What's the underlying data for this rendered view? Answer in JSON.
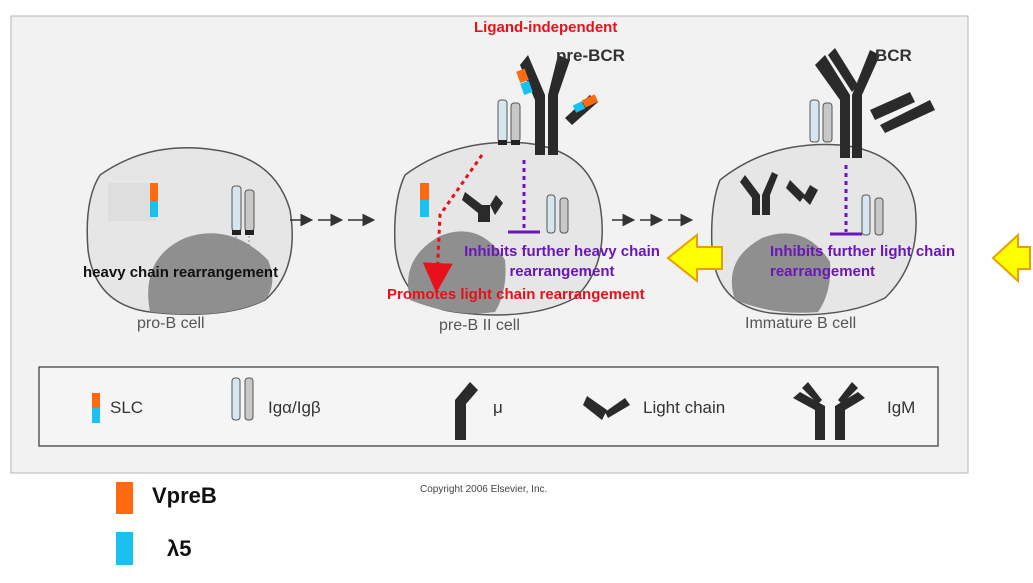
{
  "colors": {
    "vpreb": "#ff6a10",
    "lambda5": "#19c0f0",
    "inhibit": "#6a16b8",
    "promote": "#e8101a",
    "arrow_fill": "#ffff00",
    "arrow_stroke": "#e8a000",
    "cell_fill": "#e6e6e6",
    "nucleus_fill": "#8f8f8f",
    "receptor": "#2a2a2a"
  },
  "labels": {
    "ligand_independent": "Ligand-independent",
    "pre_bcr": "pre-BCR",
    "bcr": "BCR",
    "heavy_chain_rearrangement": "heavy chain rearrangement",
    "inhibits_heavy_line1": "Inhibits further heavy chain",
    "inhibits_heavy_line2": "rearrangement",
    "inhibits_light_line1": "Inhibits further light chain",
    "inhibits_light_line2": "rearrangement",
    "promotes_light": "Promotes light chain rearrangement",
    "copyright": "Copyright 2006 Elsevier, Inc."
  },
  "cells": [
    {
      "name": "pro-B cell"
    },
    {
      "name": "pre-B II cell"
    },
    {
      "name": "Immature B cell"
    }
  ],
  "legend": {
    "slc": "SLC",
    "ig": "Igα/Igβ",
    "mu": "μ",
    "light_chain": "Light chain",
    "igm": "IgM"
  },
  "key": {
    "vpreb": "VpreB",
    "lambda5": "λ5"
  },
  "icons": [
    "double-right-arrow-icon",
    "block-arrow-left-icon",
    "inhibit-line-icon",
    "dotted-arrow-icon"
  ]
}
